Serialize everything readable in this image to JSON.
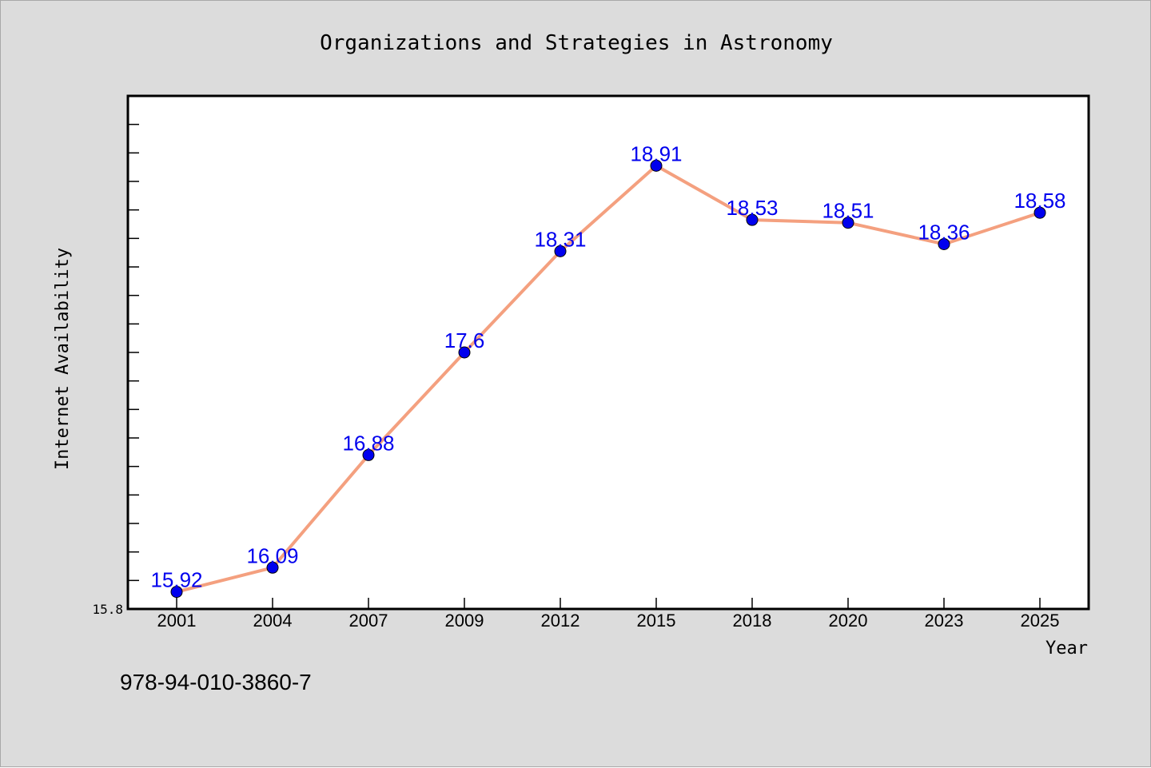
{
  "chart_data": {
    "type": "line",
    "title": "Organizations and Strategies in Astronomy",
    "xlabel": "Year",
    "ylabel": "Internet Availability",
    "categories": [
      "2001",
      "2004",
      "2007",
      "2009",
      "2012",
      "2015",
      "2018",
      "2020",
      "2023",
      "2025"
    ],
    "series": [
      {
        "values": [
          15.92,
          16.09,
          16.88,
          17.6,
          18.31,
          18.91,
          18.53,
          18.51,
          18.36,
          18.58
        ],
        "labels": [
          "15.92",
          "16.09",
          "16.88",
          "17.6",
          "18.31",
          "18.91",
          "18.53",
          "18.51",
          "18.36",
          "18.58"
        ]
      }
    ],
    "ylim": [
      15.8,
      19.4
    ],
    "yticks_labeled": [
      "15.8"
    ],
    "grid": false,
    "legend": false,
    "colors": {
      "line": "#f4a07f",
      "marker": "#0000ee",
      "data_label": "#0000ee",
      "background": "#dcdcdc",
      "plot_background": "#ffffff"
    }
  },
  "annotation": "978-94-010-3860-7"
}
